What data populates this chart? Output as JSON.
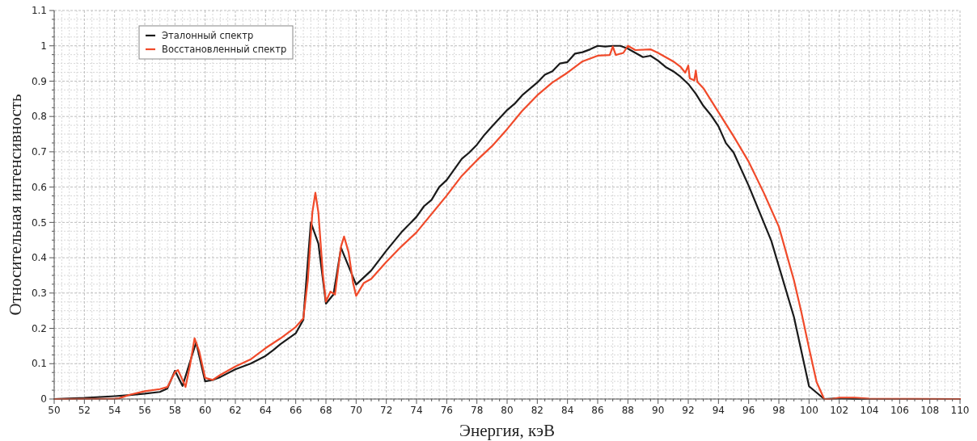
{
  "chart_data": {
    "type": "line",
    "xlabel": "Энергия, кэВ",
    "ylabel": "Относительная интенсивность",
    "xlim": [
      50,
      110
    ],
    "xticks": [
      50,
      52,
      54,
      56,
      58,
      60,
      62,
      64,
      66,
      68,
      70,
      72,
      74,
      76,
      78,
      80,
      82,
      84,
      86,
      88,
      90,
      92,
      94,
      96,
      98,
      100,
      102,
      104,
      106,
      108,
      110
    ],
    "ylim": [
      0,
      1.1
    ],
    "yticks": [
      0,
      0.1,
      0.2,
      0.3,
      0.4,
      0.5,
      0.6,
      0.7,
      0.8,
      0.9,
      1,
      1.1
    ],
    "grid": true,
    "legend": "top left",
    "marker": "none",
    "line_style": "solid",
    "series": [
      {
        "name": "Эталонный спектр",
        "color": "#1a1a1a",
        "x": [
          50,
          52,
          54,
          55,
          56,
          57,
          57.5,
          58,
          58.5,
          59.4,
          60,
          60.5,
          61,
          62,
          63,
          64,
          64.5,
          65,
          66,
          66.5,
          67,
          67.5,
          68,
          68.5,
          69,
          70,
          71,
          72,
          73,
          74,
          74.5,
          75,
          75.5,
          76,
          77,
          77.5,
          78,
          78.5,
          79,
          80,
          80.5,
          81,
          82,
          82.5,
          83,
          83.5,
          84,
          84.5,
          85,
          85.5,
          86,
          86.5,
          87,
          87.5,
          88,
          88.5,
          89,
          89.5,
          90,
          90.5,
          91,
          91.5,
          92,
          92.5,
          93,
          93.5,
          94,
          94.5,
          95,
          96,
          97.5,
          99,
          100,
          101,
          102,
          103,
          110
        ],
        "values": [
          0,
          0.003,
          0.008,
          0.011,
          0.015,
          0.02,
          0.03,
          0.08,
          0.037,
          0.16,
          0.05,
          0.054,
          0.062,
          0.084,
          0.1,
          0.122,
          0.138,
          0.156,
          0.186,
          0.224,
          0.5,
          0.44,
          0.27,
          0.296,
          0.428,
          0.324,
          0.364,
          0.42,
          0.472,
          0.516,
          0.546,
          0.564,
          0.6,
          0.62,
          0.68,
          0.698,
          0.72,
          0.748,
          0.772,
          0.818,
          0.836,
          0.86,
          0.896,
          0.918,
          0.928,
          0.95,
          0.954,
          0.978,
          0.982,
          0.99,
          1,
          0.998,
          1,
          1,
          0.992,
          0.98,
          0.968,
          0.972,
          0.958,
          0.94,
          0.928,
          0.912,
          0.892,
          0.864,
          0.83,
          0.804,
          0.772,
          0.724,
          0.698,
          0.604,
          0.448,
          0.232,
          0.036,
          0,
          0.002,
          0,
          0
        ]
      },
      {
        "name": "Восстановленный спектр",
        "color": "#f04a2a",
        "x": [
          50,
          54,
          54.3,
          55,
          56,
          57,
          57.5,
          58,
          58.2,
          58.5,
          58.7,
          59,
          59.3,
          59.6,
          60,
          60.5,
          61,
          62,
          63,
          64,
          65,
          66,
          66.5,
          66.8,
          67.1,
          67.3,
          67.5,
          67.8,
          68,
          68.3,
          68.6,
          69,
          69.2,
          69.5,
          69.8,
          70,
          70.5,
          71,
          72,
          73,
          74,
          75,
          76,
          77,
          78,
          79,
          80,
          81,
          82,
          83,
          84,
          85,
          86,
          86.8,
          87,
          87.2,
          87.7,
          88,
          88.5,
          89.5,
          90,
          90.5,
          91,
          91.5,
          91.8,
          92,
          92.1,
          92.4,
          92.5,
          92.6,
          93,
          94,
          95,
          96,
          97,
          98,
          99,
          99.5,
          100,
          100.5,
          101,
          101.5,
          102,
          103,
          104,
          110
        ],
        "values": [
          0,
          0.001,
          0.002,
          0.012,
          0.022,
          0.028,
          0.034,
          0.076,
          0.082,
          0.054,
          0.034,
          0.096,
          0.172,
          0.136,
          0.06,
          0.054,
          0.068,
          0.092,
          0.112,
          0.144,
          0.172,
          0.204,
          0.228,
          0.336,
          0.528,
          0.584,
          0.528,
          0.352,
          0.276,
          0.304,
          0.296,
          0.432,
          0.46,
          0.416,
          0.328,
          0.292,
          0.328,
          0.34,
          0.388,
          0.432,
          0.472,
          0.524,
          0.576,
          0.632,
          0.676,
          0.716,
          0.764,
          0.816,
          0.86,
          0.896,
          0.924,
          0.956,
          0.972,
          0.974,
          0.998,
          0.974,
          0.98,
          1,
          0.988,
          0.99,
          0.98,
          0.968,
          0.956,
          0.94,
          0.924,
          0.944,
          0.908,
          0.902,
          0.93,
          0.898,
          0.88,
          0.812,
          0.744,
          0.672,
          0.584,
          0.488,
          0.336,
          0.244,
          0.144,
          0.048,
          0,
          0,
          0.004,
          0.004,
          0.001,
          0
        ]
      }
    ]
  }
}
